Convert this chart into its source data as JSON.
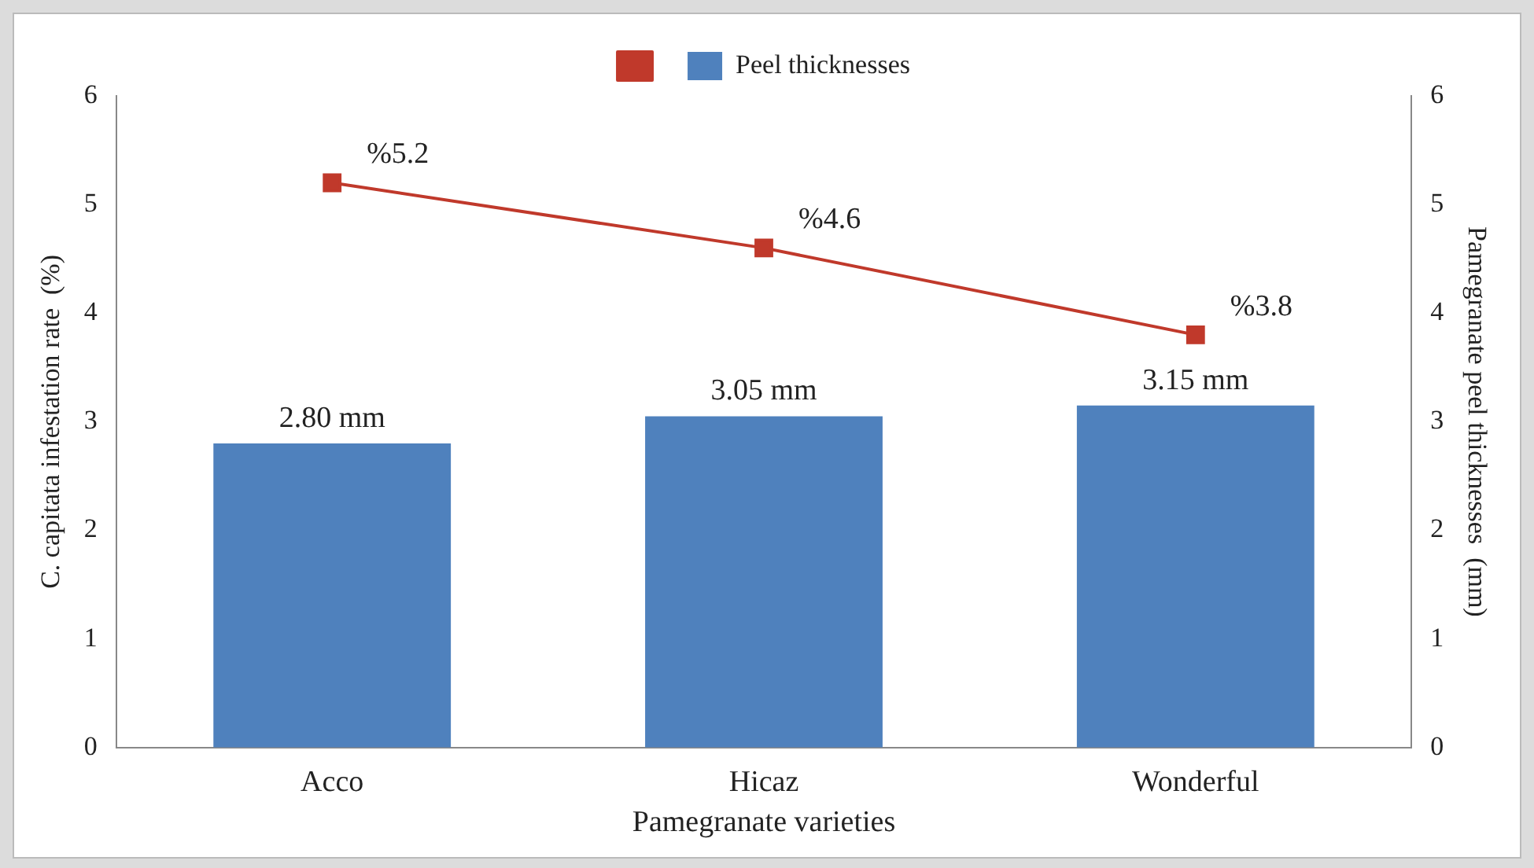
{
  "chart_data": {
    "type": "bar",
    "categories": [
      "Acco",
      "Hicaz",
      "Wonderful"
    ],
    "xlabel": "Pamegranate varieties",
    "ylabel": "C. capitata infestation rate  (%)",
    "y2label": "Pamegranate peel thicknesses  (mm)",
    "ylim": [
      0,
      6
    ],
    "yticks": [
      0,
      1,
      2,
      3,
      4,
      5,
      6
    ],
    "y2lim": [
      0,
      6
    ],
    "y2ticks": [
      0,
      1,
      2,
      3,
      4,
      5,
      6
    ],
    "grid": false,
    "legend": "top",
    "marker": "square",
    "series": [
      {
        "name": "Peel thicknesses",
        "axis": "y2",
        "color": "#4f81bd",
        "values": [
          2.8,
          3.05,
          3.15
        ],
        "value_labels": [
          "2.80 mm",
          "3.05 mm",
          "3.15 mm"
        ]
      },
      {
        "type": "line",
        "color": "#c0392b",
        "values": [
          5.2,
          4.6,
          3.8
        ],
        "value_labels": [
          "%5.2",
          "%4.6",
          "%3.8"
        ]
      }
    ]
  }
}
